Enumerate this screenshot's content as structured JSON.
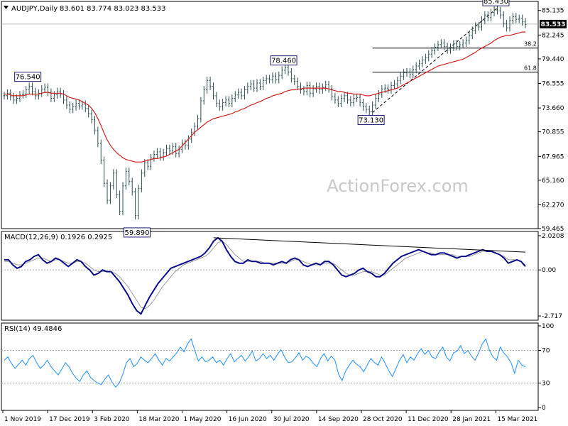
{
  "chart_data": [
    {
      "panel": "price",
      "type": "line",
      "header": {
        "symbol": "AUDJPY,Daily",
        "ohlc": "83.601 83.774 83.023 83.533",
        "open": 83.601,
        "high": 83.774,
        "low": 83.023,
        "close": 83.533
      },
      "ylim": [
        59.465,
        86.2
      ],
      "y_ticks": [
        "85.135",
        "82.245",
        "79.440",
        "76.555",
        "73.660",
        "70.855",
        "67.965",
        "65.160",
        "62.270",
        "59.465"
      ],
      "last_price_label": "83.533",
      "watermark": "ActionForex.com",
      "x_ticks": [
        "1 Nov 2019",
        "17 Dec 2019",
        "3 Feb 2020",
        "18 Mar 2020",
        "1 May 2020",
        "16 Jun 2020",
        "30 Jul 2020",
        "14 Sep 2020",
        "28 Oct 2020",
        "11 Dec 2020",
        "28 Jan 2021",
        "15 Mar 2021"
      ],
      "callouts": [
        {
          "label": "76.540",
          "t": 8,
          "value": 76.54
        },
        {
          "label": "59.890",
          "t": 43,
          "value": 59.89
        },
        {
          "label": "78.460",
          "t": 90,
          "value": 78.46
        },
        {
          "label": "73.130",
          "t": 118,
          "value": 73.13
        },
        {
          "label": "85.430",
          "t": 158,
          "value": 85.43
        }
      ],
      "fib_levels": [
        {
          "label": "38.2",
          "value": 80.71
        },
        {
          "label": "61.8",
          "value": 77.88
        }
      ],
      "close": [
        75.1,
        75.4,
        75.0,
        74.6,
        74.8,
        75.2,
        75.3,
        75.8,
        76.2,
        75.6,
        75.1,
        75.4,
        75.9,
        76.1,
        75.5,
        74.8,
        75.2,
        75.6,
        75.3,
        74.6,
        74.0,
        73.5,
        73.8,
        74.2,
        73.9,
        74.1,
        73.6,
        73.0,
        72.3,
        71.0,
        69.5,
        67.5,
        64.8,
        62.8,
        64.5,
        66.0,
        63.5,
        61.5,
        64.5,
        66.2,
        65.0,
        63.8,
        61.0,
        64.2,
        66.0,
        67.2,
        66.8,
        67.8,
        68.2,
        68.5,
        67.9,
        68.4,
        68.9,
        68.6,
        69.1,
        68.3,
        68.8,
        69.5,
        69.2,
        70.0,
        70.8,
        71.5,
        72.4,
        74.5,
        75.8,
        76.9,
        76.2,
        75.1,
        74.2,
        73.8,
        74.3,
        74.6,
        74.2,
        74.8,
        75.2,
        75.5,
        75.1,
        75.8,
        76.2,
        76.5,
        76.0,
        76.6,
        76.2,
        76.9,
        77.1,
        77.0,
        77.4,
        77.0,
        77.5,
        78.1,
        78.4,
        77.9,
        77.1,
        76.8,
        76.2,
        75.8,
        75.6,
        76.3,
        75.4,
        75.9,
        76.2,
        75.8,
        76.1,
        76.4,
        75.9,
        75.0,
        74.6,
        74.2,
        74.8,
        75.1,
        74.6,
        74.3,
        74.8,
        74.9,
        74.3,
        73.8,
        73.5,
        73.2,
        74.0,
        74.8,
        75.3,
        75.9,
        76.0,
        75.8,
        76.3,
        76.5,
        76.9,
        77.4,
        77.8,
        77.9,
        77.6,
        78.2,
        78.6,
        78.9,
        79.3,
        79.6,
        80.0,
        80.4,
        80.8,
        81.1,
        81.3,
        80.9,
        80.5,
        80.8,
        81.2,
        80.9,
        81.1,
        81.3,
        81.6,
        82.2,
        82.8,
        83.3,
        83.2,
        84.0,
        84.6,
        84.3,
        84.9,
        85.2,
        85.1,
        84.6,
        83.6,
        83.1,
        84.0,
        84.4,
        84.1,
        84.2,
        83.8,
        83.5
      ],
      "sma_55": [
        75.3,
        75.3,
        75.2,
        75.1,
        75.1,
        75.1,
        75.1,
        75.2,
        75.3,
        75.3,
        75.3,
        75.3,
        75.4,
        75.5,
        75.5,
        75.4,
        75.4,
        75.4,
        75.4,
        75.3,
        75.1,
        74.9,
        74.8,
        74.7,
        74.6,
        74.4,
        74.2,
        74.0,
        73.6,
        73.1,
        72.4,
        71.6,
        70.7,
        69.9,
        69.3,
        68.8,
        68.4,
        68.1,
        67.8,
        67.6,
        67.5,
        67.4,
        67.3,
        67.3,
        67.3,
        67.4,
        67.5,
        67.6,
        67.7,
        67.7,
        67.8,
        67.9,
        68.0,
        68.2,
        68.4,
        68.6,
        68.8,
        69.2,
        69.6,
        70.0,
        70.4,
        70.8,
        71.1,
        71.4,
        71.7,
        72.0,
        72.2,
        72.4,
        72.5,
        72.6,
        72.7,
        72.8,
        72.9,
        73.0,
        73.2,
        73.3,
        73.5,
        73.6,
        73.8,
        74.0,
        74.1,
        74.3,
        74.4,
        74.6,
        74.8,
        74.9,
        75.1,
        75.2,
        75.3,
        75.4,
        75.6,
        75.7,
        75.8,
        75.8,
        75.9,
        75.9,
        76.0,
        76.0,
        76.0,
        76.0,
        76.0,
        76.0,
        76.0,
        76.0,
        75.9,
        75.8,
        75.7,
        75.6,
        75.6,
        75.5,
        75.4,
        75.4,
        75.3,
        75.3,
        75.3,
        75.2,
        75.1,
        75.1,
        75.2,
        75.3,
        75.4,
        75.5,
        75.6,
        75.7,
        75.8,
        75.9,
        76.0,
        76.2,
        76.4,
        76.6,
        76.8,
        77.0,
        77.2,
        77.4,
        77.6,
        77.8,
        78.0,
        78.2,
        78.4,
        78.6,
        78.7,
        78.8,
        78.9,
        79.0,
        79.1,
        79.2,
        79.3,
        79.4,
        79.6,
        79.8,
        80.0,
        80.2,
        80.5,
        80.7,
        80.9,
        81.1,
        81.3,
        81.6,
        81.8,
        82.0,
        82.1,
        82.2,
        82.2,
        82.3,
        82.4,
        82.5,
        82.6,
        82.6
      ]
    },
    {
      "panel": "macd",
      "type": "line",
      "header": "MACD(12,26,9) 0.1926 0.2925",
      "ylim": [
        -2.717,
        2.0208
      ],
      "y_ticks": [
        "2.0208",
        "0.00",
        "-2.717"
      ],
      "main": [
        0.6,
        0.6,
        0.3,
        0.1,
        0.2,
        0.5,
        0.6,
        0.8,
        0.9,
        0.6,
        0.4,
        0.5,
        0.7,
        0.6,
        0.4,
        0.2,
        0.4,
        0.6,
        0.5,
        0.2,
        0.0,
        -0.3,
        -0.2,
        0.0,
        -0.1,
        -0.1,
        -0.4,
        -0.7,
        -1.1,
        -1.5,
        -2.0,
        -2.4,
        -2.6,
        -2.1,
        -1.6,
        -1.2,
        -0.8,
        -0.5,
        -0.2,
        0.1,
        0.2,
        0.3,
        0.4,
        0.5,
        0.6,
        0.7,
        0.8,
        1.0,
        1.3,
        1.7,
        1.9,
        1.7,
        1.2,
        0.8,
        0.5,
        0.4,
        0.4,
        0.6,
        0.5,
        0.5,
        0.4,
        0.4,
        0.4,
        0.3,
        0.4,
        0.5,
        0.4,
        0.6,
        0.7,
        0.6,
        0.3,
        0.2,
        0.3,
        0.4,
        0.3,
        0.5,
        0.5,
        0.3,
        0.0,
        -0.3,
        -0.4,
        -0.3,
        -0.2,
        0.0,
        0.1,
        -0.1,
        -0.2,
        -0.4,
        -0.4,
        -0.2,
        0.1,
        0.4,
        0.6,
        0.8,
        0.9,
        1.0,
        1.1,
        1.2,
        1.1,
        1.0,
        0.9,
        0.9,
        1.0,
        1.0,
        0.9,
        0.8,
        0.7,
        0.8,
        0.8,
        0.9,
        1.0,
        1.1,
        1.2,
        1.1,
        1.1,
        1.0,
        0.9,
        0.7,
        0.4,
        0.5,
        0.6,
        0.5,
        0.2
      ],
      "signal": [
        0.5,
        0.5,
        0.4,
        0.3,
        0.3,
        0.4,
        0.5,
        0.6,
        0.7,
        0.7,
        0.6,
        0.5,
        0.6,
        0.6,
        0.5,
        0.4,
        0.4,
        0.5,
        0.5,
        0.4,
        0.2,
        0.0,
        -0.1,
        -0.1,
        -0.1,
        -0.1,
        -0.2,
        -0.4,
        -0.7,
        -1.0,
        -1.4,
        -1.8,
        -2.2,
        -2.3,
        -2.1,
        -1.8,
        -1.4,
        -1.0,
        -0.7,
        -0.4,
        -0.1,
        0.1,
        0.3,
        0.4,
        0.5,
        0.6,
        0.7,
        0.8,
        1.0,
        1.3,
        1.6,
        1.7,
        1.5,
        1.2,
        0.9,
        0.7,
        0.5,
        0.5,
        0.5,
        0.5,
        0.5,
        0.4,
        0.4,
        0.4,
        0.4,
        0.4,
        0.4,
        0.5,
        0.6,
        0.6,
        0.5,
        0.4,
        0.3,
        0.3,
        0.3,
        0.4,
        0.4,
        0.4,
        0.2,
        0.0,
        -0.2,
        -0.3,
        -0.3,
        -0.2,
        -0.1,
        -0.1,
        -0.1,
        -0.2,
        -0.3,
        -0.3,
        -0.1,
        0.1,
        0.3,
        0.5,
        0.7,
        0.8,
        0.9,
        1.0,
        1.1,
        1.0,
        1.0,
        0.9,
        0.9,
        0.9,
        0.9,
        0.9,
        0.8,
        0.8,
        0.8,
        0.8,
        0.9,
        1.0,
        1.1,
        1.1,
        1.1,
        1.0,
        0.9,
        0.8,
        0.6,
        0.6,
        0.6,
        0.5,
        0.3
      ]
    },
    {
      "panel": "rsi",
      "type": "line",
      "header": "RSI(14) 49.4846",
      "ylim": [
        0,
        100
      ],
      "y_ticks": [
        "100",
        "70",
        "30",
        "0"
      ],
      "levels": [
        70,
        30
      ],
      "values": [
        58,
        62,
        54,
        48,
        53,
        58,
        52,
        60,
        64,
        55,
        48,
        52,
        58,
        50,
        45,
        40,
        47,
        55,
        50,
        42,
        36,
        32,
        40,
        45,
        37,
        33,
        30,
        28,
        35,
        40,
        31,
        25,
        30,
        41,
        55,
        60,
        50,
        54,
        62,
        58,
        55,
        60,
        66,
        58,
        52,
        60,
        57,
        62,
        67,
        74,
        68,
        78,
        84,
        70,
        57,
        62,
        56,
        58,
        62,
        55,
        58,
        52,
        60,
        66,
        56,
        60,
        64,
        57,
        62,
        69,
        57,
        60,
        66,
        60,
        64,
        58,
        65,
        71,
        62,
        55,
        56,
        61,
        67,
        58,
        63,
        60,
        54,
        50,
        60,
        66,
        57,
        63,
        58,
        41,
        33,
        45,
        52,
        58,
        53,
        50,
        44,
        52,
        60,
        55,
        52,
        62,
        54,
        45,
        38,
        48,
        58,
        65,
        55,
        62,
        58,
        66,
        72,
        65,
        70,
        62,
        60,
        68,
        74,
        62,
        57,
        67,
        69,
        76,
        66,
        70,
        63,
        58,
        67,
        78,
        84,
        70,
        62,
        58,
        74,
        67,
        62,
        55,
        42,
        58,
        52,
        50
      ]
    }
  ]
}
